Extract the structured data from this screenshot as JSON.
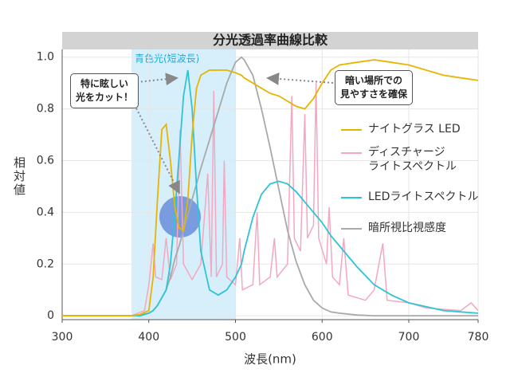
{
  "chart_data": {
    "type": "line",
    "title": "分光透過率曲線比較",
    "xlabel": "波長(nm)",
    "ylabel": "相対値",
    "xlim": [
      300,
      780
    ],
    "ylim": [
      -0.015,
      1.03
    ],
    "xticks": [
      300,
      400,
      500,
      600,
      700,
      780
    ],
    "yticks": [
      0,
      0.2,
      0.4,
      0.6,
      0.8,
      {
        "value": 1,
        "label": "1.0"
      }
    ],
    "grid": true,
    "legend": "right",
    "highlight_band": {
      "range": [
        380,
        500
      ],
      "label": "青色光(短波長)",
      "color": "#d6effa"
    },
    "annotations": [
      {
        "text": "特に眩しい\n光をカット！"
      },
      {
        "text": "暗い場所での\n見やすさを確保"
      }
    ],
    "x": [
      300,
      380,
      390,
      400,
      405,
      410,
      415,
      420,
      425,
      430,
      435,
      440,
      445,
      450,
      455,
      460,
      470,
      480,
      490,
      500,
      507,
      510,
      520,
      530,
      540,
      550,
      560,
      570,
      580,
      590,
      600,
      610,
      620,
      640,
      660,
      680,
      700,
      720,
      740,
      760,
      780
    ],
    "series": [
      {
        "name": "ナイトグラス LED",
        "color": "#e8b400",
        "values": [
          0,
          0,
          0.005,
          0.02,
          0.15,
          0.45,
          0.72,
          0.74,
          0.6,
          0.42,
          0.34,
          0.33,
          0.45,
          0.7,
          0.88,
          0.93,
          0.95,
          0.95,
          0.95,
          0.94,
          0.93,
          0.92,
          0.9,
          0.88,
          0.86,
          0.85,
          0.83,
          0.81,
          0.8,
          0.84,
          0.9,
          0.95,
          0.97,
          0.98,
          0.99,
          0.98,
          0.97,
          0.95,
          0.93,
          0.92,
          0.91
        ]
      },
      {
        "name": "ディスチャージ\nライトスペクトル",
        "color": "#f4a7c0",
        "x": [
          300,
          380,
          395,
          400,
          405,
          408,
          415,
          420,
          425,
          432,
          436,
          440,
          450,
          460,
          468,
          472,
          475,
          478,
          485,
          487,
          490,
          500,
          505,
          508,
          520,
          525,
          528,
          540,
          545,
          548,
          560,
          565,
          568,
          575,
          580,
          583,
          590,
          593,
          596,
          605,
          608,
          612,
          620,
          625,
          630,
          650,
          660,
          670,
          675,
          700,
          720,
          760,
          772,
          780
        ],
        "values": [
          0,
          0,
          0.02,
          0.12,
          0.28,
          0.15,
          0.14,
          0.3,
          0.14,
          0.2,
          0.72,
          0.2,
          0.14,
          0.2,
          0.55,
          0.15,
          0.87,
          0.15,
          0.2,
          0.6,
          0.15,
          0.12,
          0.3,
          0.1,
          0.12,
          0.4,
          0.12,
          0.15,
          0.3,
          0.15,
          0.2,
          0.85,
          0.3,
          0.25,
          0.78,
          0.3,
          0.35,
          0.9,
          0.3,
          0.2,
          0.42,
          0.15,
          0.12,
          0.3,
          0.08,
          0.06,
          0.1,
          0.28,
          0.06,
          0.05,
          0.03,
          0.02,
          0.05,
          0.02
        ]
      },
      {
        "name": "LEDライトスペクトル",
        "color": "#2ec4d6",
        "values": [
          0,
          0,
          0,
          0.01,
          0.02,
          0.04,
          0.07,
          0.1,
          0.2,
          0.4,
          0.62,
          0.85,
          0.95,
          0.8,
          0.5,
          0.25,
          0.1,
          0.08,
          0.1,
          0.15,
          0.2,
          0.25,
          0.38,
          0.47,
          0.51,
          0.52,
          0.51,
          0.48,
          0.44,
          0.4,
          0.36,
          0.31,
          0.27,
          0.19,
          0.12,
          0.08,
          0.05,
          0.035,
          0.02,
          0.015,
          0.01
        ]
      },
      {
        "name": "暗所視比視感度",
        "color": "#a9a9a9",
        "values": [
          0,
          0,
          0.003,
          0.01,
          0.02,
          0.04,
          0.07,
          0.1,
          0.15,
          0.22,
          0.27,
          0.33,
          0.39,
          0.45,
          0.51,
          0.57,
          0.68,
          0.79,
          0.9,
          0.98,
          1,
          0.99,
          0.93,
          0.8,
          0.65,
          0.49,
          0.33,
          0.21,
          0.12,
          0.06,
          0.03,
          0.015,
          0.01,
          0.003,
          0,
          0,
          0,
          0,
          0,
          0,
          0
        ]
      }
    ]
  }
}
